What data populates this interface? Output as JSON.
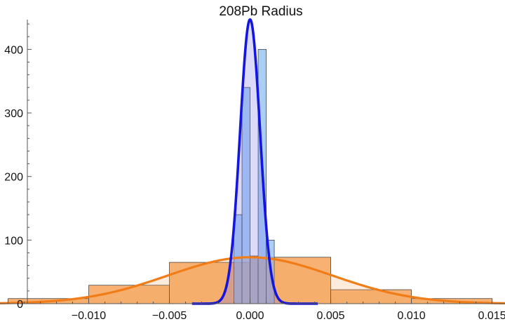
{
  "chart_data": {
    "type": "histogram",
    "title": "208Pb Radius",
    "xlim": [
      -0.0155,
      0.0158
    ],
    "ylim": [
      0,
      460
    ],
    "x_ticks": [
      -0.01,
      -0.005,
      0.0,
      0.005,
      0.01,
      0.015
    ],
    "x_tick_labels": [
      "−0.010",
      "−0.005",
      "0.000",
      "0.005",
      "0.010",
      "0.015"
    ],
    "y_ticks": [
      0,
      100,
      200,
      300,
      400
    ],
    "y_tick_labels": [
      "0",
      "100",
      "200",
      "300",
      "400"
    ],
    "series": [
      {
        "color": "#f4a35a",
        "histogram": {
          "bin_edges": [
            -0.015,
            -0.01,
            -0.005,
            0.0,
            0.005,
            0.01,
            0.015
          ],
          "counts": [
            8,
            29,
            65,
            73,
            22,
            8
          ]
        },
        "fit_curve": {
          "shape": "gaussian",
          "peak": 73,
          "center": 0.0,
          "sigma": 0.0051,
          "color": "#f07d18"
        }
      },
      {
        "color": "#8fbff0",
        "histogram": {
          "bin_edges": [
            -0.001,
            -0.0005,
            0.0,
            0.0005,
            0.001,
            0.0015
          ],
          "counts": [
            140,
            340,
            75,
            400,
            100
          ]
        },
        "fit_curve": {
          "shape": "gaussian",
          "peak": 447,
          "center": 0.0,
          "sigma": 0.00062,
          "color": "#1515e0"
        }
      }
    ]
  }
}
